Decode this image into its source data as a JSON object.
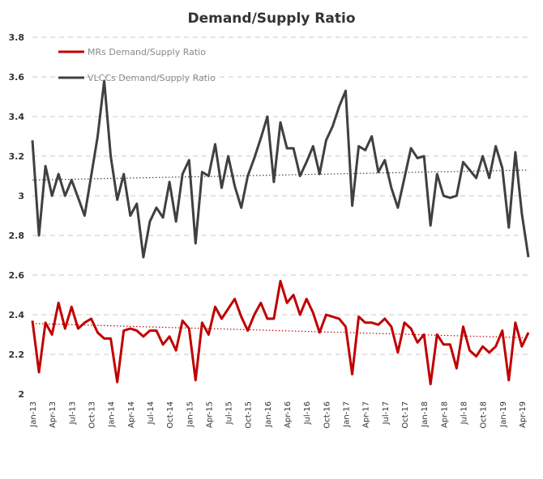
{
  "chart_data": {
    "type": "line",
    "title": "Demand/Supply Ratio",
    "xlabel": "",
    "ylabel": "",
    "ylim": [
      2,
      3.8
    ],
    "yticks": [
      "2",
      "2.2",
      "2.4",
      "2.6",
      "2.8",
      "3",
      "3.2",
      "3.4",
      "3.6",
      "3.8"
    ],
    "x_tick_labels": [
      "Jan-13",
      "Apr-13",
      "Jul-13",
      "Oct-13",
      "Jan-14",
      "Apr-14",
      "Jul-14",
      "Oct-14",
      "Jan-15",
      "Apr-15",
      "Jul-15",
      "Oct-15",
      "Jan-16",
      "Apr-16",
      "Jul-16",
      "Oct-16",
      "Jan-17",
      "Apr-17",
      "Jul-17",
      "Oct-17",
      "Jan-18",
      "Apr-18",
      "Jul-18",
      "Oct-18",
      "Jan-19",
      "Apr-19"
    ],
    "x_start": "Jan-13",
    "x_end": "Jun-19",
    "grid": true,
    "legend_position": "top-left",
    "series": [
      {
        "name": "MRs Demand/Supply Ratio",
        "color": "#c00000",
        "trendline": true,
        "values": [
          2.37,
          2.11,
          2.36,
          2.3,
          2.46,
          2.33,
          2.44,
          2.33,
          2.36,
          2.38,
          2.31,
          2.28,
          2.28,
          2.06,
          2.32,
          2.33,
          2.32,
          2.29,
          2.32,
          2.32,
          2.25,
          2.29,
          2.22,
          2.37,
          2.33,
          2.07,
          2.36,
          2.3,
          2.44,
          2.38,
          2.43,
          2.48,
          2.39,
          2.32,
          2.4,
          2.46,
          2.38,
          2.38,
          2.57,
          2.46,
          2.5,
          2.4,
          2.48,
          2.41,
          2.31,
          2.4,
          2.39,
          2.38,
          2.34,
          2.1,
          2.39,
          2.36,
          2.36,
          2.35,
          2.38,
          2.34,
          2.21,
          2.36,
          2.33,
          2.26,
          2.3,
          2.05,
          2.3,
          2.25,
          2.25,
          2.13,
          2.34,
          2.22,
          2.19,
          2.24,
          2.21,
          2.24,
          2.32,
          2.07,
          2.36,
          2.24,
          2.31
        ]
      },
      {
        "name": "VLCCs Demand/Supply Ratio",
        "color": "#404040",
        "trendline": true,
        "values": [
          3.28,
          2.8,
          3.15,
          3.0,
          3.11,
          3.0,
          3.08,
          2.99,
          2.9,
          3.1,
          3.3,
          3.58,
          3.2,
          2.98,
          3.11,
          2.9,
          2.96,
          2.69,
          2.87,
          2.94,
          2.89,
          3.07,
          2.87,
          3.11,
          3.18,
          2.76,
          3.12,
          3.1,
          3.26,
          3.04,
          3.2,
          3.05,
          2.94,
          3.1,
          3.19,
          3.29,
          3.4,
          3.07,
          3.37,
          3.24,
          3.24,
          3.1,
          3.17,
          3.25,
          3.11,
          3.28,
          3.35,
          3.45,
          3.53,
          2.95,
          3.25,
          3.23,
          3.3,
          3.12,
          3.18,
          3.04,
          2.94,
          3.09,
          3.24,
          3.19,
          3.2,
          2.85,
          3.11,
          3.0,
          2.99,
          3.0,
          3.17,
          3.13,
          3.09,
          3.2,
          3.09,
          3.25,
          3.14,
          2.84,
          3.22,
          2.91,
          2.69
        ]
      }
    ]
  }
}
